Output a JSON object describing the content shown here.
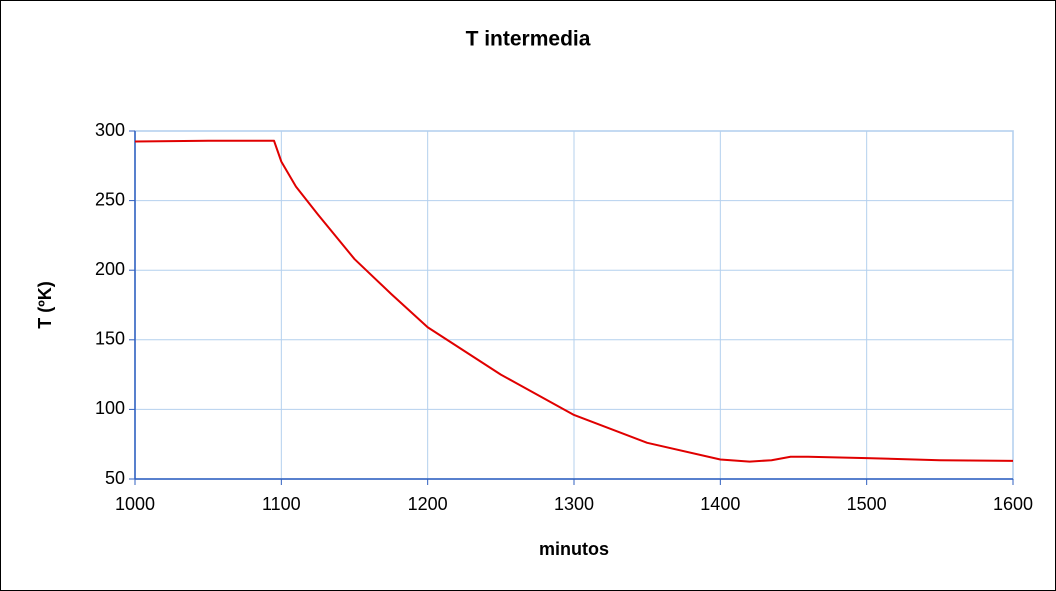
{
  "chart_data": {
    "type": "line",
    "title": "T intermedia",
    "x_label": "minutos",
    "y_label": "T (ºK)",
    "x": [
      1000,
      1050,
      1095,
      1100,
      1110,
      1125,
      1150,
      1175,
      1200,
      1250,
      1300,
      1350,
      1400,
      1420,
      1435,
      1448,
      1460,
      1500,
      1550,
      1600
    ],
    "series": [
      {
        "name": "T intermedia",
        "color": "#e00000",
        "values": [
          292.5,
          293,
          293,
          278,
          260,
          240,
          208,
          183,
          159,
          125,
          96,
          76,
          64,
          62.5,
          63.5,
          66,
          66,
          65,
          63.5,
          63
        ]
      }
    ],
    "xlim": [
      1000,
      1600
    ],
    "xticks": [
      1000,
      1100,
      1200,
      1300,
      1400,
      1500,
      1600
    ],
    "ylim": [
      50,
      300
    ],
    "yticks": [
      50,
      100,
      150,
      200,
      250,
      300
    ],
    "grid": true
  }
}
